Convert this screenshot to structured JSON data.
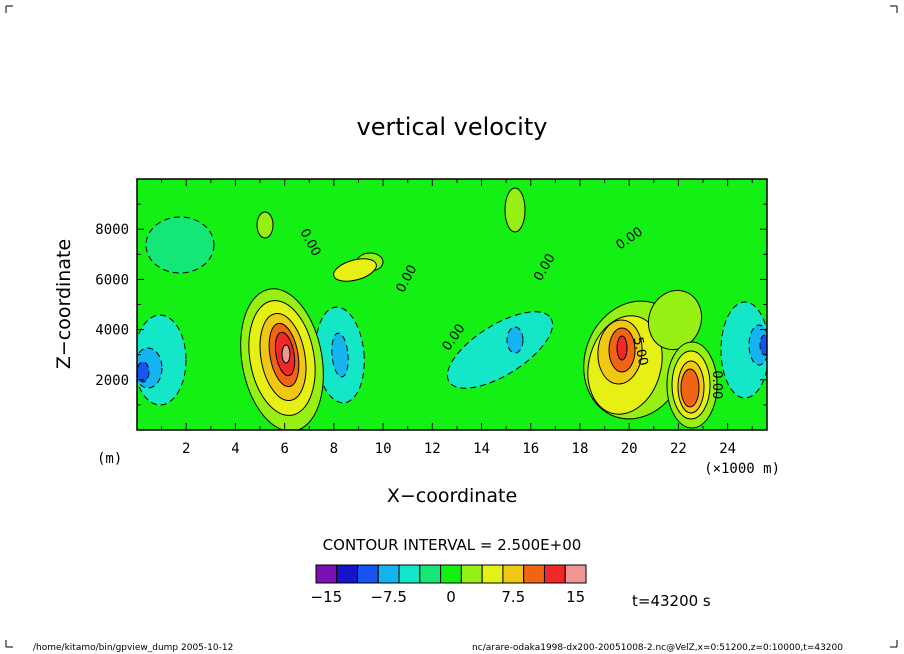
{
  "chart_data": {
    "type": "heatmap",
    "title": "vertical velocity",
    "xlabel": "X−coordinate",
    "ylabel": "Z−coordinate",
    "x_unit_left": "(m)",
    "x_unit_right": "(×1000 m)",
    "xlim": [
      0,
      25.6
    ],
    "ylim": [
      0,
      10000
    ],
    "x_ticks": [
      2,
      4,
      6,
      8,
      10,
      12,
      14,
      16,
      18,
      20,
      22,
      24
    ],
    "y_ticks": [
      2000,
      4000,
      6000,
      8000
    ],
    "contour_interval_text": "CONTOUR INTERVAL = 2.500E+00",
    "contour_labels": [
      {
        "text": "0.00",
        "x": 6.9,
        "y": 7400,
        "angle": 62
      },
      {
        "text": "0.00",
        "x": 11.1,
        "y": 5950,
        "angle": -62
      },
      {
        "text": "0.00",
        "x": 13.0,
        "y": 3600,
        "angle": -55
      },
      {
        "text": "0.00",
        "x": 16.7,
        "y": 6400,
        "angle": -60
      },
      {
        "text": "0.00",
        "x": 20.1,
        "y": 7500,
        "angle": -35
      },
      {
        "text": "5.00",
        "x": 20.3,
        "y": 3100,
        "angle": 78
      },
      {
        "text": "0.00",
        "x": 23.4,
        "y": 1800,
        "angle": 90
      }
    ],
    "legend": {
      "colors": [
        "#7a0fb2",
        "#1414c8",
        "#1455f0",
        "#14b4f0",
        "#14e6c8",
        "#14e678",
        "#14f014",
        "#96f014",
        "#e6f014",
        "#f0c814",
        "#f06414",
        "#f02828",
        "#f09696"
      ],
      "tick_labels": [
        "−15",
        "−7.5",
        "0",
        "7.5",
        "15"
      ],
      "tick_values": [
        -15,
        -7.5,
        0,
        7.5,
        15
      ],
      "min": -16.25,
      "max": 16.25
    },
    "time_label": "t=43200 s",
    "palette": {
      "background": "#14f014",
      "pos_2_5": "#96f014",
      "pos_5": "#e6f014",
      "pos_7_5": "#f0c814",
      "pos_10": "#f06414",
      "pos_12_5": "#f02828",
      "pos_15": "#f09696",
      "neg_2_5": "#14e678",
      "neg_5": "#14e6c8",
      "neg_7_5": "#14b4f0",
      "neg_10": "#1455f0"
    }
  },
  "footer": {
    "left": "/home/kitamo/bin/gpview_dump  2005-10-12",
    "right": "nc/arare-odaka1998-dx200-20051008-2.nc@VelZ,x=0:51200,z=0:10000,t=43200"
  }
}
